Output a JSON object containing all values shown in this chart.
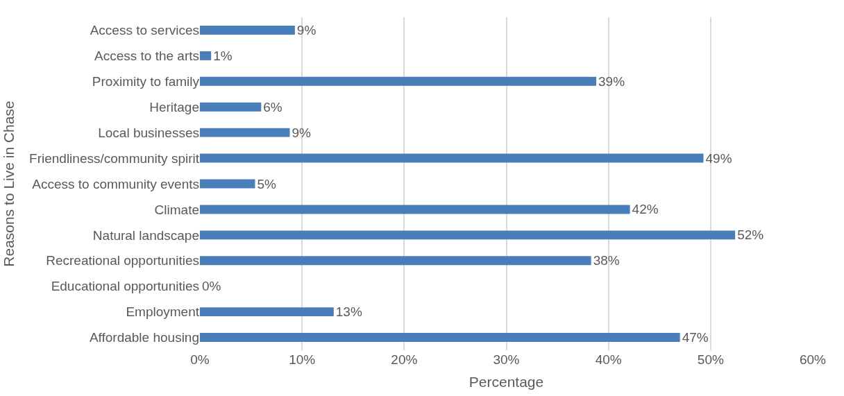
{
  "chart_data": {
    "type": "bar",
    "orientation": "horizontal",
    "xlabel": "Percentage",
    "ylabel": "Reasons to Live in Chase",
    "categories": [
      "Access to services",
      "Access to the arts",
      "Proximity to family",
      "Heritage",
      "Local businesses",
      "Friendliness/community spirit",
      "Access to community events",
      "Climate",
      "Natural landscape",
      "Recreational opportunities",
      "Educational opportunities",
      "Employment",
      "Affordable housing"
    ],
    "values": [
      9.3,
      1.1,
      38.8,
      6.0,
      8.8,
      49.3,
      5.4,
      42.1,
      52.4,
      38.3,
      0,
      13.1,
      47.0
    ],
    "value_labels": [
      "9%",
      "1%",
      "39%",
      "6%",
      "9%",
      "49%",
      "5%",
      "42%",
      "52%",
      "38%",
      "0%",
      "13%",
      "47%"
    ],
    "color": "#4a7ebb",
    "xlim": [
      0,
      60
    ],
    "xticks": [
      {
        "value": 0,
        "label": "0%"
      },
      {
        "value": 10,
        "label": "10%"
      },
      {
        "value": 20,
        "label": "20%"
      },
      {
        "value": 30,
        "label": "30%"
      },
      {
        "value": 40,
        "label": "40%"
      },
      {
        "value": 50,
        "label": "50%"
      },
      {
        "value": 60,
        "label": "60%"
      }
    ],
    "grid": "x"
  }
}
